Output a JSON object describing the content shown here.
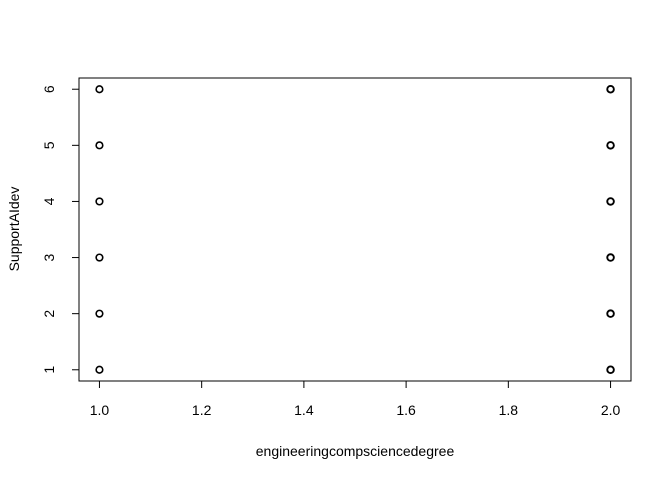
{
  "chart_data": {
    "type": "scatter",
    "title": "",
    "xlabel": "engineeringcompsciencedegree",
    "ylabel": "SupportAIdev",
    "xlim": [
      0.96,
      2.04
    ],
    "ylim": [
      0.8,
      6.2
    ],
    "x_ticks": [
      1.0,
      1.2,
      1.4,
      1.6,
      1.8,
      2.0
    ],
    "x_tick_labels": [
      "1.0",
      "1.2",
      "1.4",
      "1.6",
      "1.8",
      "2.0"
    ],
    "y_ticks": [
      1,
      2,
      3,
      4,
      5,
      6
    ],
    "y_tick_labels": [
      "1",
      "2",
      "3",
      "4",
      "5",
      "6"
    ],
    "grid": false,
    "legend": "none",
    "marker": "open-circle",
    "colors": {
      "point": "#000000",
      "axis": "#000000",
      "background": "#ffffff"
    },
    "points": [
      {
        "x": 1,
        "y": 1
      },
      {
        "x": 1,
        "y": 2
      },
      {
        "x": 1,
        "y": 3
      },
      {
        "x": 1,
        "y": 4
      },
      {
        "x": 1,
        "y": 5
      },
      {
        "x": 1,
        "y": 6
      },
      {
        "x": 2,
        "y": 1
      },
      {
        "x": 2,
        "y": 2
      },
      {
        "x": 2,
        "y": 3
      },
      {
        "x": 2,
        "y": 4
      },
      {
        "x": 2,
        "y": 5
      },
      {
        "x": 2,
        "y": 6
      }
    ]
  }
}
